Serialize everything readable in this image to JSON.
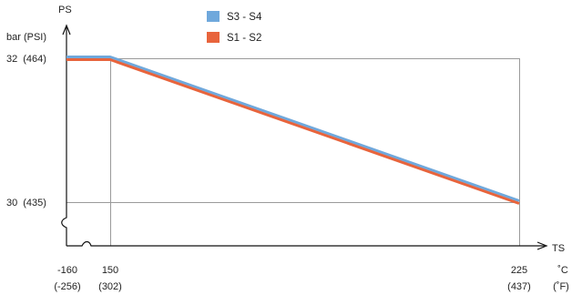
{
  "chart_data": {
    "type": "line",
    "y_axis": {
      "symbol": "PS",
      "unit": "bar (PSI)"
    },
    "x_axis": {
      "symbol": "TS",
      "unit_c": "˚C",
      "unit_f": "(˚F)"
    },
    "x_ticks": [
      {
        "value": -160,
        "label": "-160",
        "sub": "(-256)"
      },
      {
        "value": 150,
        "label": "150",
        "sub": "(302)"
      },
      {
        "value": 225,
        "label": "225",
        "sub": "(437)"
      }
    ],
    "y_ticks": [
      {
        "value": 32,
        "label": "32",
        "sub": "(464)"
      },
      {
        "value": 30,
        "label": "30",
        "sub": "(435)"
      }
    ],
    "ylim": [
      30,
      32
    ],
    "axis_breaks": [
      "x",
      "y"
    ],
    "series": [
      {
        "name": "S3 - S4",
        "color": "#6fa8dc",
        "x": [
          -160,
          150,
          225
        ],
        "y": [
          32,
          32,
          30
        ]
      },
      {
        "name": "S1 - S2",
        "color": "#e8643c",
        "x": [
          -160,
          150,
          225
        ],
        "y": [
          32,
          32,
          30
        ]
      }
    ],
    "legend": {
      "position": "top-center"
    },
    "grid": false
  }
}
